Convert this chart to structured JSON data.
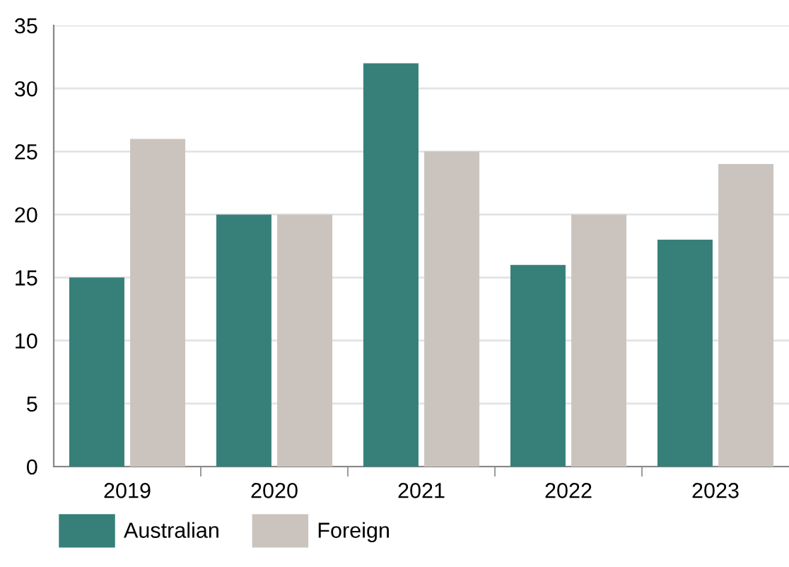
{
  "chart_data": {
    "type": "bar",
    "categories": [
      "2019",
      "2020",
      "2021",
      "2022",
      "2023"
    ],
    "series": [
      {
        "name": "Australian",
        "color": "#37807a",
        "values": [
          15,
          20,
          32,
          16,
          18
        ]
      },
      {
        "name": "Foreign",
        "color": "#cbc4be",
        "values": [
          26,
          20,
          25,
          20,
          24
        ]
      }
    ],
    "ylim": [
      0,
      35
    ],
    "yticks": [
      0,
      5,
      10,
      15,
      20,
      25,
      30,
      35
    ],
    "grid": "y",
    "legend": "bottom left"
  }
}
